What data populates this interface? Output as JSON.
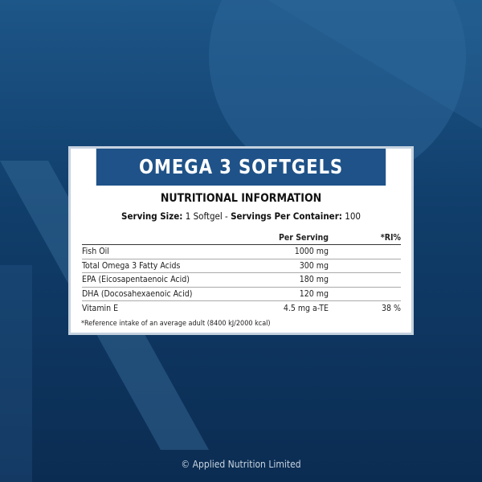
{
  "title": "OMEGA 3 SOFTGELS",
  "subtitle": "NUTRITIONAL INFORMATION",
  "serving": {
    "size_label": "Serving Size:",
    "size_value": " 1 Softgel - ",
    "per_container_label": "Servings Per Container:",
    "per_container_value": " 100"
  },
  "table": {
    "headers": [
      "",
      "Per Serving",
      "*RI%"
    ],
    "rows": [
      [
        "Fish Oil",
        "1000 mg",
        ""
      ],
      [
        "Total Omega 3 Fatty Acids",
        "300 mg",
        ""
      ],
      [
        "EPA (Eicosapentaenoic Acid)",
        "180 mg",
        ""
      ],
      [
        "DHA (Docosahexaenoic Acid)",
        "120 mg",
        ""
      ],
      [
        "Vitamin E",
        "4.5 mg a-TE",
        "38 %"
      ]
    ]
  },
  "footnote": "*Reference intake of an average adult (8400 kJ/2000 kcal)",
  "copyright": "© Applied Nutrition Limited",
  "colors": {
    "header": "#1f5288",
    "background": "#103d6a"
  }
}
